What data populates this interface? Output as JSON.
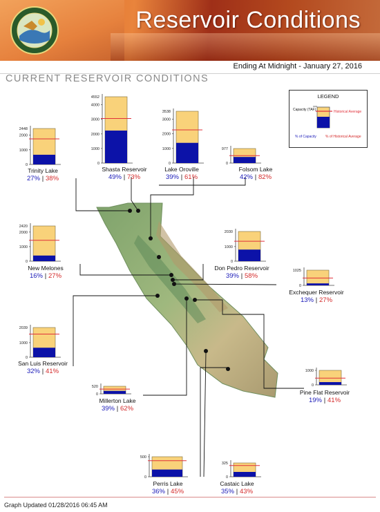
{
  "header": {
    "title": "Reservoir Conditions",
    "seal_text": "DEPARTMENT OF WATER RESOURCES · STATE OF CALIFORNIA"
  },
  "date_line": "Ending At Midnight - January 27, 2016",
  "section_title": "CURRENT RESERVOIR CONDITIONS",
  "footer": "Graph Updated 01/28/2016 06:45 AM",
  "legend": {
    "title": "LEGEND",
    "capacity_label": "Capacity (TAF)",
    "historical_label": "Historical Average",
    "pct_capacity_label": "% of Capacity",
    "pct_historical_label": "% of Historical Average"
  },
  "colors": {
    "capacity_fill": "#f9d27a",
    "storage_fill": "#0c12a8",
    "historical_line": "#e0303a",
    "pct_capacity": "#1a1ab8",
    "pct_historical": "#d42a2a",
    "map_land": "#8fb27a",
    "map_water": "#2d6aa0"
  },
  "chart_data": {
    "type": "bar",
    "units": "TAF",
    "reservoirs": [
      {
        "name": "Trinity Lake",
        "capacity": 2448,
        "ticks": [
          0,
          1000,
          2000
        ],
        "capacity_label": "2448",
        "pct_capacity": 27,
        "pct_historical": 38,
        "pct_capacity_text": "27%",
        "pct_historical_text": "38%"
      },
      {
        "name": "Shasta Reservoir",
        "capacity": 4552,
        "ticks": [
          0,
          1000,
          2000,
          3000,
          4000
        ],
        "capacity_label": "4552",
        "pct_capacity": 49,
        "pct_historical": 73,
        "pct_capacity_text": "49%",
        "pct_historical_text": "73%"
      },
      {
        "name": "Lake Oroville",
        "capacity": 3538,
        "ticks": [
          0,
          1000,
          2000,
          3000
        ],
        "capacity_label": "3538",
        "pct_capacity": 39,
        "pct_historical": 61,
        "pct_capacity_text": "39%",
        "pct_historical_text": "61%"
      },
      {
        "name": "Folsom Lake",
        "capacity": 977,
        "ticks": [
          0
        ],
        "capacity_label": "977",
        "pct_capacity": 42,
        "pct_historical": 82,
        "pct_capacity_text": "42%",
        "pct_historical_text": "82%"
      },
      {
        "name": "New Melones",
        "capacity": 2420,
        "ticks": [
          0,
          1000,
          2000
        ],
        "capacity_label": "2420",
        "pct_capacity": 16,
        "pct_historical": 27,
        "pct_capacity_text": "16%",
        "pct_historical_text": "27%"
      },
      {
        "name": "Don Pedro Reservoir",
        "capacity": 2030,
        "ticks": [
          0,
          1000
        ],
        "capacity_label": "2030",
        "pct_capacity": 39,
        "pct_historical": 58,
        "pct_capacity_text": "39%",
        "pct_historical_text": "58%"
      },
      {
        "name": "Exchequer Reservoir",
        "capacity": 1025,
        "ticks": [
          0
        ],
        "capacity_label": "1025",
        "pct_capacity": 13,
        "pct_historical": 27,
        "pct_capacity_text": "13%",
        "pct_historical_text": "27%"
      },
      {
        "name": "San Luis Reservoir",
        "capacity": 2039,
        "ticks": [
          0,
          1000
        ],
        "capacity_label": "2039",
        "pct_capacity": 32,
        "pct_historical": 41,
        "pct_capacity_text": "32%",
        "pct_historical_text": "41%"
      },
      {
        "name": "Millerton Lake",
        "capacity": 520,
        "ticks": [
          0
        ],
        "capacity_label": "520",
        "pct_capacity": 39,
        "pct_historical": 62,
        "pct_capacity_text": "39%",
        "pct_historical_text": "62%"
      },
      {
        "name": "Pine Flat Reservoir",
        "capacity": 1000,
        "ticks": [
          0,
          1000
        ],
        "capacity_label": "",
        "pct_capacity": 19,
        "pct_historical": 41,
        "pct_capacity_text": "19%",
        "pct_historical_text": "41%"
      },
      {
        "name": "Perris Lake",
        "capacity": 500,
        "ticks": [
          0,
          500
        ],
        "capacity_label": "",
        "pct_capacity": 36,
        "pct_historical": 45,
        "pct_capacity_text": "36%",
        "pct_historical_text": "45%"
      },
      {
        "name": "Castaic Lake",
        "capacity": 325,
        "ticks": [
          0
        ],
        "capacity_label": "325",
        "pct_capacity": 35,
        "pct_historical": 43,
        "pct_capacity_text": "35%",
        "pct_historical_text": "43%"
      }
    ]
  }
}
